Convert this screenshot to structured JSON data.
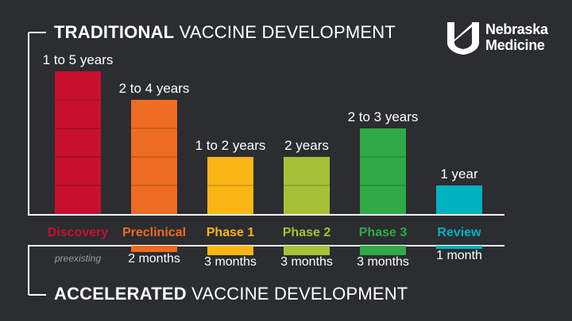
{
  "titles": {
    "traditional_bold": "TRADITIONAL",
    "traditional_rest": " VACCINE DEVELOPMENT",
    "accelerated_bold": "ACCELERATED",
    "accelerated_rest": " VACCINE DEVELOPMENT"
  },
  "logo": {
    "line1": "Nebraska",
    "line2": "Medicine",
    "icon": "nebraska-medicine-n-mark"
  },
  "chart_data": {
    "type": "bar",
    "categories": [
      "Discovery",
      "Preclinical",
      "Phase 1",
      "Phase 2",
      "Phase 3",
      "Review"
    ],
    "category_colors": [
      "#c8102e",
      "#ee6b22",
      "#fbb615",
      "#a8c038",
      "#2faa47",
      "#00b2c0"
    ],
    "series": [
      {
        "values": [
          5,
          4,
          2,
          2,
          3,
          1
        ],
        "labels": [
          "1 to 5 years",
          "2 to 4 years",
          "1 to 2 years",
          "2 years",
          "2 to 3 years",
          "1 year"
        ]
      },
      {
        "values": [
          0,
          2,
          3,
          3,
          3,
          1
        ],
        "labels": [
          "preexisting",
          "2 months",
          "3 months",
          "3 months",
          "3 months",
          "1 month"
        ]
      }
    ],
    "ylim": [
      0,
      5
    ]
  }
}
